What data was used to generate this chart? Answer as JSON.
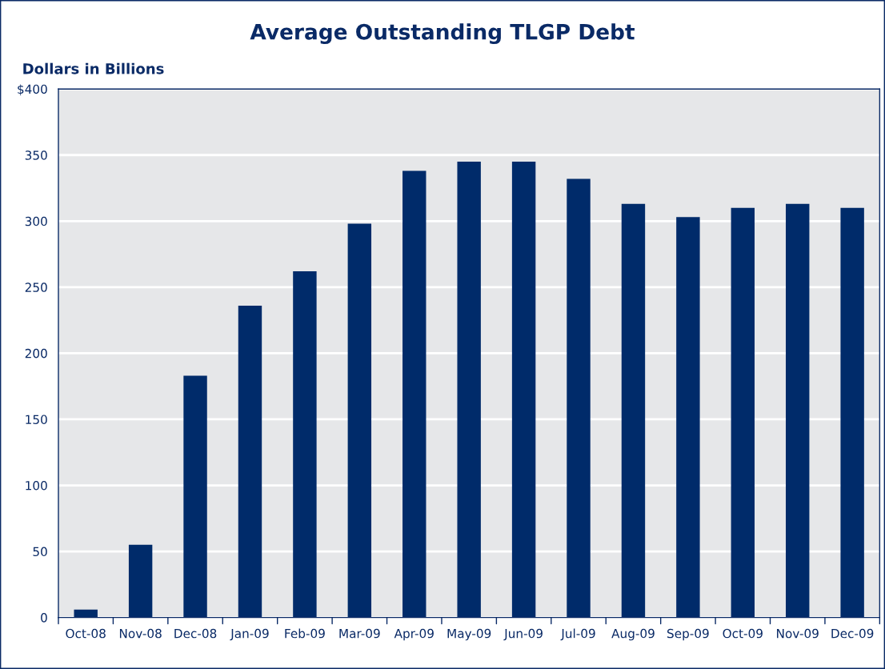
{
  "chart_data": {
    "type": "bar",
    "title": "Average Outstanding TLGP Debt",
    "ylabel": "Dollars in Billions",
    "categories": [
      "Oct-08",
      "Nov-08",
      "Dec-08",
      "Jan-09",
      "Feb-09",
      "Mar-09",
      "Apr-09",
      "May-09",
      "Jun-09",
      "Jul-09",
      "Aug-09",
      "Sep-09",
      "Oct-09",
      "Nov-09",
      "Dec-09"
    ],
    "values": [
      6,
      55,
      183,
      236,
      262,
      298,
      338,
      345,
      345,
      332,
      313,
      303,
      310,
      313,
      310
    ],
    "color": "#002b6a",
    "ylim": [
      0,
      400
    ],
    "yticks": [
      0,
      50,
      100,
      150,
      200,
      250,
      300,
      350,
      {
        "value": 400,
        "label": "$400"
      }
    ],
    "grid": "y"
  }
}
